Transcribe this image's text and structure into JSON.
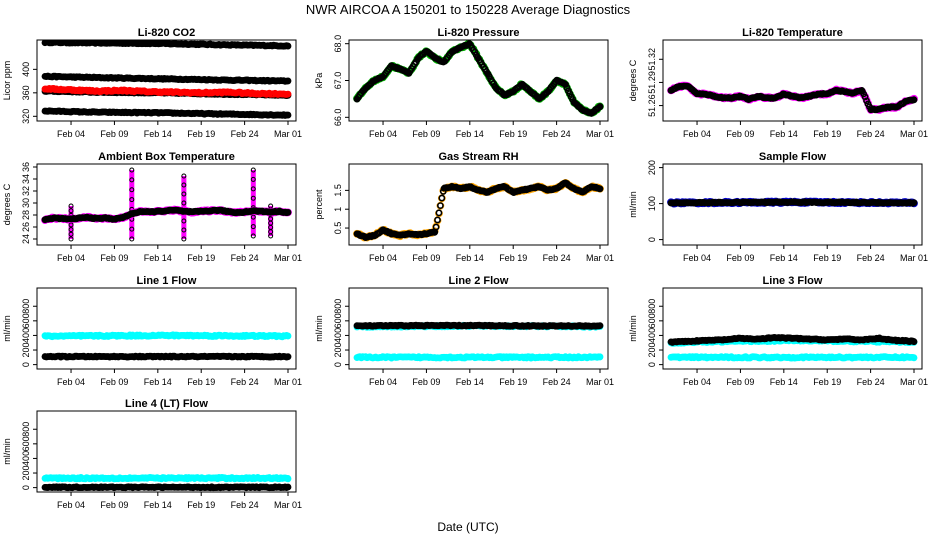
{
  "figure_title": "NWR   AIRCOA A   150201 to 150228   Average Diagnostics",
  "xlabel": "Date (UTC)",
  "x_ticks": [
    "Feb 04",
    "Feb 09",
    "Feb 14",
    "Feb 19",
    "Feb 24",
    "Mar 01"
  ],
  "colors": {
    "black": "#000000",
    "red": "#ff0000",
    "magenta": "#ff00ff",
    "cyan": "#00ffff",
    "orange": "#ffa500",
    "green": "#00b000",
    "blue": "#0000cc"
  },
  "chart_data": [
    {
      "type": "scatter",
      "title": "Li-820 CO2",
      "ylabel": "Licor ppm",
      "ylim": [
        312,
        450
      ],
      "yticks": [
        320,
        360,
        400
      ],
      "x_unit": "day of month (Feb 2015; Mar 01 = 29)",
      "xlim": [
        1,
        29
      ],
      "series": [
        {
          "name": "level-1",
          "color": "black",
          "x": [
            1,
            7,
            14,
            21,
            29
          ],
          "y": [
            446,
            445,
            444,
            442,
            440
          ]
        },
        {
          "name": "level-2",
          "color": "black",
          "x": [
            1,
            7,
            14,
            21,
            29
          ],
          "y": [
            388,
            386,
            384,
            382,
            380
          ]
        },
        {
          "name": "level-3",
          "color": "black",
          "x": [
            1,
            7,
            14,
            21,
            29
          ],
          "y": [
            363,
            361,
            360,
            358,
            356
          ]
        },
        {
          "name": "level-4",
          "color": "black",
          "x": [
            1,
            7,
            14,
            21,
            29
          ],
          "y": [
            329,
            327,
            326,
            324,
            322
          ]
        },
        {
          "name": "sample-red",
          "color": "red",
          "x": [
            1,
            4,
            7,
            10,
            13,
            16,
            19,
            22,
            25,
            29
          ],
          "y": [
            367,
            365,
            363,
            364,
            362,
            361,
            360,
            361,
            359,
            358
          ]
        }
      ]
    },
    {
      "type": "scatter",
      "title": "Li-820 Pressure",
      "ylabel": "kPa",
      "ylim": [
        65.9,
        68.1
      ],
      "yticks": [
        66.0,
        67.0,
        68.0
      ],
      "xlim": [
        1,
        29
      ],
      "series": [
        {
          "name": "pressure",
          "color": "black",
          "outline": "green",
          "x": [
            1,
            2,
            3,
            4,
            5,
            6,
            7,
            8,
            9,
            10,
            11,
            12,
            13,
            14,
            15,
            16,
            17,
            18,
            19,
            20,
            21,
            22,
            23,
            24,
            25,
            26,
            27,
            28,
            29
          ],
          "y": [
            66.5,
            66.8,
            67.0,
            67.1,
            67.4,
            67.3,
            67.2,
            67.6,
            67.8,
            67.6,
            67.5,
            67.8,
            67.9,
            68.0,
            67.6,
            67.2,
            66.8,
            66.6,
            66.7,
            66.9,
            66.7,
            66.5,
            66.7,
            67.0,
            66.9,
            66.4,
            66.2,
            66.1,
            66.3
          ]
        }
      ]
    },
    {
      "type": "scatter",
      "title": "Li-820 Temperature",
      "ylabel": "degrees C",
      "ylim": [
        51.24,
        51.345
      ],
      "yticks": [
        51.26,
        51.29,
        51.32
      ],
      "xlim": [
        1,
        29
      ],
      "series": [
        {
          "name": "temperature",
          "color": "black",
          "outline": "magenta",
          "x": [
            1,
            2,
            3,
            4,
            5,
            6,
            7,
            8,
            9,
            10,
            11,
            12,
            13,
            14,
            15,
            16,
            17,
            18,
            19,
            20,
            21,
            22,
            23,
            24,
            25,
            26,
            27,
            28,
            29
          ],
          "y": [
            51.28,
            51.285,
            51.285,
            51.275,
            51.275,
            51.272,
            51.27,
            51.27,
            51.272,
            51.268,
            51.272,
            51.27,
            51.27,
            51.275,
            51.272,
            51.27,
            51.272,
            51.275,
            51.275,
            51.28,
            51.278,
            51.276,
            51.28,
            51.255,
            51.255,
            51.258,
            51.258,
            51.265,
            51.268
          ]
        }
      ]
    },
    {
      "type": "scatter",
      "title": "Ambient Box Temperature",
      "ylabel": "degrees C",
      "ylim": [
        23,
        36.5
      ],
      "yticks": [
        24,
        26,
        28,
        30,
        32,
        34,
        36
      ],
      "xlim": [
        1,
        29
      ],
      "series": [
        {
          "name": "box-temp",
          "color": "black",
          "outline": "magenta",
          "x": [
            1,
            2,
            3,
            4,
            5,
            6,
            7,
            8,
            9,
            10,
            11,
            12,
            13,
            14,
            15,
            16,
            17,
            18,
            19,
            20,
            21,
            22,
            23,
            24,
            25,
            26,
            27,
            28,
            29
          ],
          "y": [
            27.2,
            27.5,
            27.4,
            27.3,
            27.5,
            27.6,
            27.4,
            27.5,
            27.3,
            27.6,
            28.2,
            28.6,
            28.5,
            28.6,
            28.7,
            28.8,
            28.6,
            28.5,
            28.6,
            28.7,
            28.8,
            28.6,
            28.4,
            28.5,
            28.7,
            28.6,
            28.5,
            28.6,
            28.4
          ]
        }
      ],
      "spikes": [
        {
          "x": 4,
          "ymin": 24.0,
          "ymax": 29.5
        },
        {
          "x": 11,
          "ymin": 24.0,
          "ymax": 35.5
        },
        {
          "x": 17,
          "ymin": 24.0,
          "ymax": 34.5
        },
        {
          "x": 25,
          "ymin": 24.5,
          "ymax": 35.5
        },
        {
          "x": 27,
          "ymin": 24.5,
          "ymax": 29.5
        }
      ]
    },
    {
      "type": "scatter",
      "title": "Gas Stream RH",
      "ylabel": "percent",
      "ylim": [
        0.05,
        2.2
      ],
      "yticks": [
        0.5,
        1.0,
        1.5
      ],
      "xlim": [
        1,
        29
      ],
      "series": [
        {
          "name": "rh",
          "color": "black",
          "outline": "orange",
          "x": [
            1,
            2,
            3,
            4,
            5,
            6,
            7,
            8,
            9,
            10,
            11,
            12,
            13,
            14,
            15,
            16,
            17,
            18,
            19,
            20,
            21,
            22,
            23,
            24,
            25,
            26,
            27,
            28,
            29
          ],
          "y": [
            0.35,
            0.25,
            0.3,
            0.45,
            0.35,
            0.3,
            0.35,
            0.32,
            0.35,
            0.4,
            1.55,
            1.6,
            1.55,
            1.6,
            1.5,
            1.45,
            1.55,
            1.6,
            1.45,
            1.5,
            1.55,
            1.6,
            1.5,
            1.55,
            1.7,
            1.55,
            1.45,
            1.6,
            1.55
          ]
        }
      ]
    },
    {
      "type": "scatter",
      "title": "Sample Flow",
      "ylabel": "ml/min",
      "ylim": [
        -15,
        210
      ],
      "yticks": [
        0,
        100,
        200
      ],
      "xlim": [
        1,
        29
      ],
      "series": [
        {
          "name": "sample-flow",
          "color": "black",
          "outline": "blue",
          "x": [
            1,
            8,
            15,
            22,
            29
          ],
          "y": [
            102,
            103,
            104,
            103,
            102
          ]
        }
      ]
    },
    {
      "type": "scatter",
      "title": "Line 1 Flow",
      "ylabel": "ml/min",
      "ylim": [
        -60,
        1050
      ],
      "yticks": [
        0,
        200,
        400,
        600,
        800
      ],
      "xlim": [
        1,
        29
      ],
      "series": [
        {
          "name": "line1-cyan",
          "color": "cyan",
          "x": [
            1,
            8,
            15,
            22,
            29
          ],
          "y": [
            390,
            395,
            400,
            395,
            390
          ]
        },
        {
          "name": "line1-black",
          "color": "black",
          "x": [
            1,
            8,
            15,
            22,
            29
          ],
          "y": [
            110,
            110,
            110,
            110,
            110
          ]
        }
      ]
    },
    {
      "type": "scatter",
      "title": "Line 2 Flow",
      "ylabel": "ml/min",
      "ylim": [
        -60,
        1050
      ],
      "yticks": [
        0,
        200,
        400,
        600,
        800
      ],
      "xlim": [
        1,
        29
      ],
      "series": [
        {
          "name": "line2-cyan-upper",
          "color": "cyan",
          "x": [
            1,
            8,
            15,
            22,
            29
          ],
          "y": [
            520,
            525,
            530,
            525,
            520
          ]
        },
        {
          "name": "line2-black",
          "color": "black",
          "x": [
            1,
            8,
            15,
            22,
            29
          ],
          "y": [
            530,
            535,
            535,
            530,
            530
          ]
        },
        {
          "name": "line2-cyan-lower",
          "color": "cyan",
          "x": [
            1,
            8,
            15,
            22,
            29
          ],
          "y": [
            100,
            100,
            100,
            100,
            100
          ]
        }
      ]
    },
    {
      "type": "scatter",
      "title": "Line 3 Flow",
      "ylabel": "ml/min",
      "ylim": [
        -60,
        1050
      ],
      "yticks": [
        0,
        200,
        400,
        600,
        800
      ],
      "xlim": [
        1,
        29
      ],
      "series": [
        {
          "name": "line3-cyan-upper",
          "color": "cyan",
          "x": [
            1,
            8,
            15,
            22,
            29
          ],
          "y": [
            300,
            320,
            330,
            320,
            310
          ]
        },
        {
          "name": "line3-black",
          "color": "black",
          "x": [
            1,
            3,
            5,
            7,
            9,
            11,
            13,
            15,
            17,
            19,
            21,
            23,
            25,
            27,
            29
          ],
          "y": [
            310,
            320,
            330,
            340,
            360,
            350,
            370,
            360,
            350,
            340,
            350,
            340,
            360,
            330,
            320
          ]
        },
        {
          "name": "line3-cyan-lower",
          "color": "cyan",
          "x": [
            1,
            8,
            15,
            22,
            29
          ],
          "y": [
            100,
            100,
            100,
            100,
            100
          ]
        }
      ]
    },
    {
      "type": "scatter",
      "title": "Line 4 (LT) Flow",
      "ylabel": "ml/min",
      "ylim": [
        -60,
        1050
      ],
      "yticks": [
        0,
        200,
        400,
        600,
        800
      ],
      "xlim": [
        1,
        29
      ],
      "series": [
        {
          "name": "line4-cyan",
          "color": "cyan",
          "x": [
            1,
            8,
            15,
            22,
            29
          ],
          "y": [
            130,
            130,
            130,
            130,
            130
          ]
        },
        {
          "name": "line4-black",
          "color": "black",
          "x": [
            1,
            8,
            15,
            22,
            29
          ],
          "y": [
            5,
            5,
            5,
            5,
            5
          ]
        }
      ]
    }
  ]
}
